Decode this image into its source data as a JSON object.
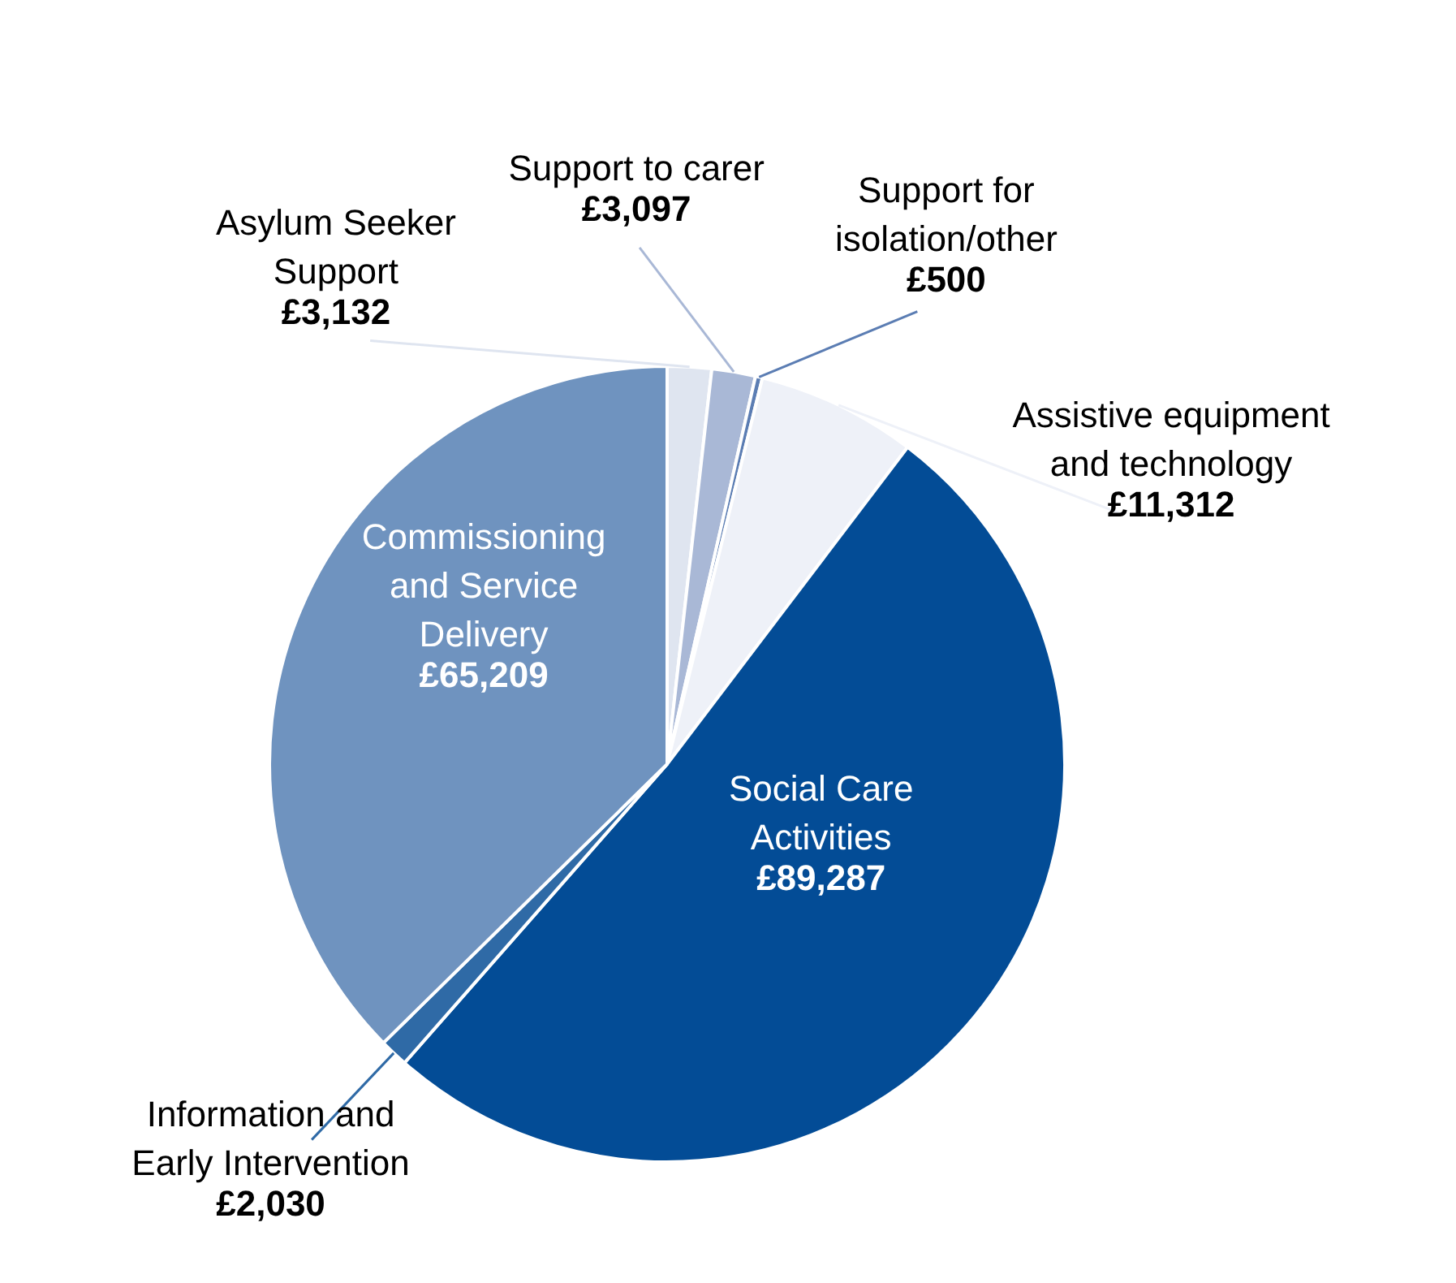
{
  "chart_data": {
    "type": "pie",
    "categories": [
      "Asylum Seeker Support",
      "Support to carer",
      "Support for isolation/other",
      "Assistive equipment and technology",
      "Social Care Activities",
      "Information and Early Intervention",
      "Commissioning and Service Delivery"
    ],
    "values": [
      3132,
      3097,
      500,
      11312,
      89287,
      2030,
      65209
    ],
    "colors": [
      "#dfe5f0",
      "#a9b8d6",
      "#5b7db3",
      "#eef1f8",
      "#034c96",
      "#2f6aa6",
      "#6f93bf"
    ],
    "value_labels": [
      "£3,132",
      "£3,097",
      "£500",
      "£11,312",
      "£89,287",
      "£2,030",
      "£65,209"
    ]
  }
}
